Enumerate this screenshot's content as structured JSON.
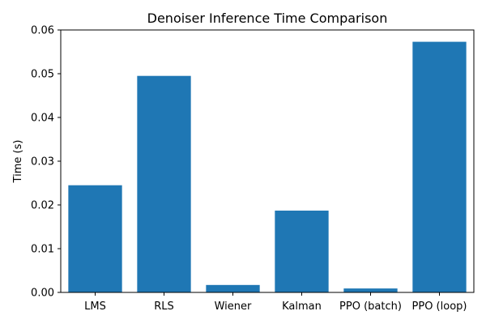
{
  "chart_data": {
    "type": "bar",
    "title": "Denoiser Inference Time Comparison",
    "xlabel": "",
    "ylabel": "Time (s)",
    "categories": [
      "LMS",
      "RLS",
      "Wiener",
      "Kalman",
      "PPO (batch)",
      "PPO (loop)"
    ],
    "values": [
      0.0245,
      0.0495,
      0.0017,
      0.0187,
      0.0009,
      0.0573
    ],
    "ylim": [
      0,
      0.06
    ],
    "yticks": [
      "0.00",
      "0.01",
      "0.02",
      "0.03",
      "0.04",
      "0.05",
      "0.06"
    ],
    "grid": false,
    "legend": "none",
    "bar_color": "#1f77b4"
  }
}
